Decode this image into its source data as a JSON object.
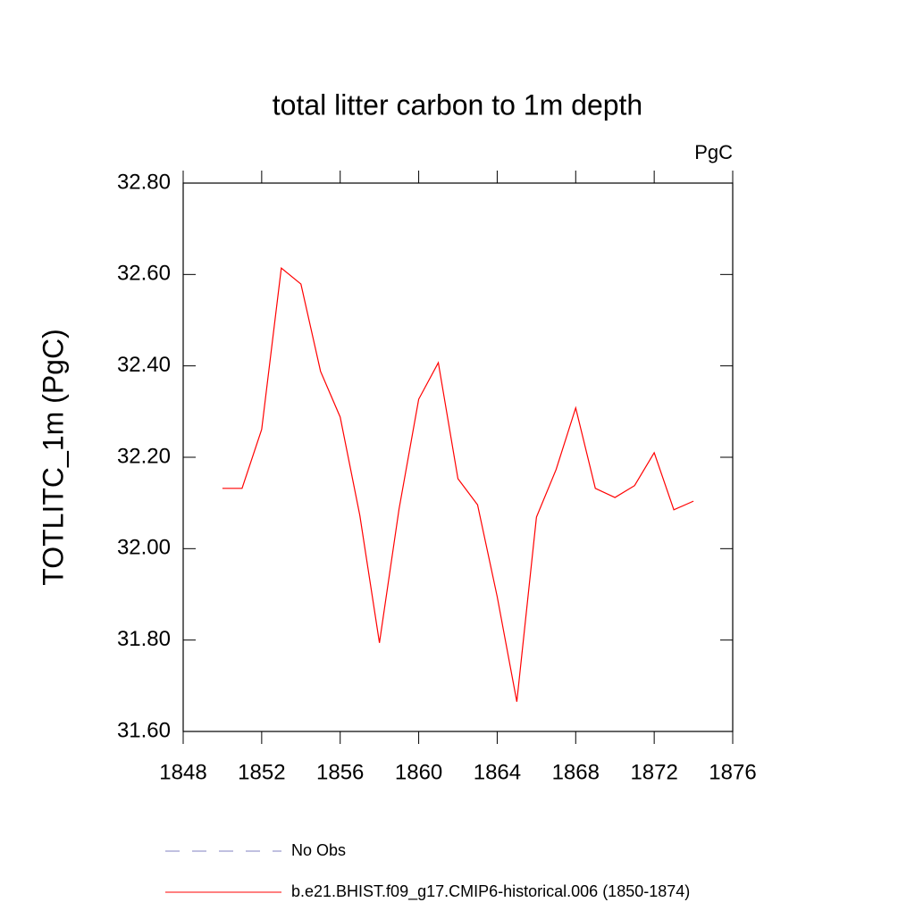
{
  "chart_data": {
    "type": "line",
    "title": "total litter carbon to 1m depth",
    "units": "PgC",
    "y_label": "TOTLITC_1m  (PgC)",
    "x": [
      1850,
      1851,
      1852,
      1853,
      1854,
      1855,
      1856,
      1857,
      1858,
      1859,
      1860,
      1861,
      1862,
      1863,
      1864,
      1865,
      1866,
      1867,
      1868,
      1869,
      1870,
      1871,
      1872,
      1873,
      1874
    ],
    "series": [
      {
        "name": "b.e21.BHIST.f09_g17.CMIP6-historical.006 (1850-1874)",
        "color": "#ff0000",
        "values": [
          32.132,
          32.132,
          32.261,
          32.614,
          32.579,
          32.388,
          32.288,
          32.073,
          31.794,
          32.087,
          32.327,
          32.407,
          32.153,
          32.096,
          31.895,
          31.665,
          32.069,
          32.173,
          32.308,
          32.132,
          32.112,
          32.138,
          32.21,
          32.085,
          32.104
        ]
      }
    ],
    "obs": {
      "name": "No Obs",
      "color": "#8080c0",
      "dash": "dashed"
    },
    "xlim": [
      1848,
      1876
    ],
    "xticks": [
      1848,
      1852,
      1856,
      1860,
      1864,
      1868,
      1872,
      1876
    ],
    "ylim": [
      31.6,
      32.8
    ],
    "yticks": [
      {
        "value": 31.6,
        "label": "31.60"
      },
      {
        "value": 31.8,
        "label": "31.80"
      },
      {
        "value": 32.0,
        "label": "32.00"
      },
      {
        "value": 32.2,
        "label": "32.20"
      },
      {
        "value": 32.4,
        "label": "32.40"
      },
      {
        "value": 32.6,
        "label": "32.60"
      },
      {
        "value": 32.8,
        "label": "32.80"
      }
    ],
    "grid": false
  }
}
